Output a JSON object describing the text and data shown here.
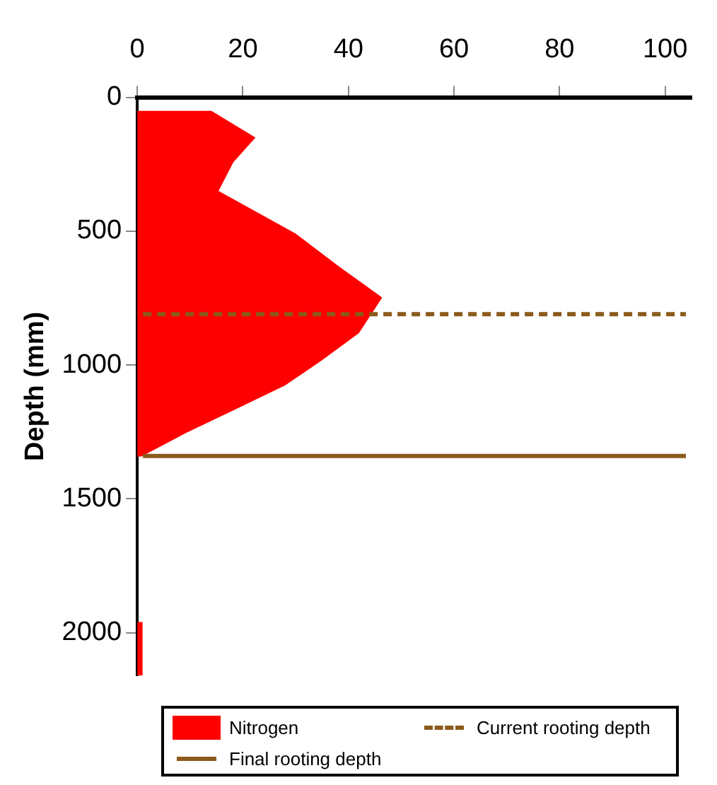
{
  "chart_data": {
    "type": "area",
    "orientation": "horizontal",
    "ylabel": "Depth (mm)",
    "x": [
      50,
      50,
      150,
      243,
      350,
      437,
      509,
      633,
      748,
      881,
      988,
      1076,
      1165,
      1253,
      1342,
      1342,
      1960,
      1960,
      2160
    ],
    "series": [
      {
        "name": "Nitrogen",
        "color": "#ff0000",
        "values": [
          0,
          14,
          22.4,
          18.2,
          15.4,
          23.4,
          30,
          38.3,
          46.4,
          42,
          34.6,
          28,
          18.7,
          9.3,
          0.8,
          0,
          0,
          1,
          1
        ]
      }
    ],
    "xlim": [
      0,
      105
    ],
    "xticks": [
      0,
      20,
      40,
      60,
      80,
      100
    ],
    "ylim": [
      2160,
      0
    ],
    "yticks": [
      0,
      500,
      1000,
      1500,
      2000
    ],
    "ref_lines": [
      {
        "axis": "y",
        "value": 810,
        "label": "Current rooting depth",
        "color": "#8b5a1b",
        "line_style": "dashed"
      },
      {
        "axis": "y",
        "value": 1340,
        "label": "Final rooting depth",
        "color": "#8b5a1b",
        "line_style": "solid"
      }
    ],
    "legend": "bottom"
  }
}
